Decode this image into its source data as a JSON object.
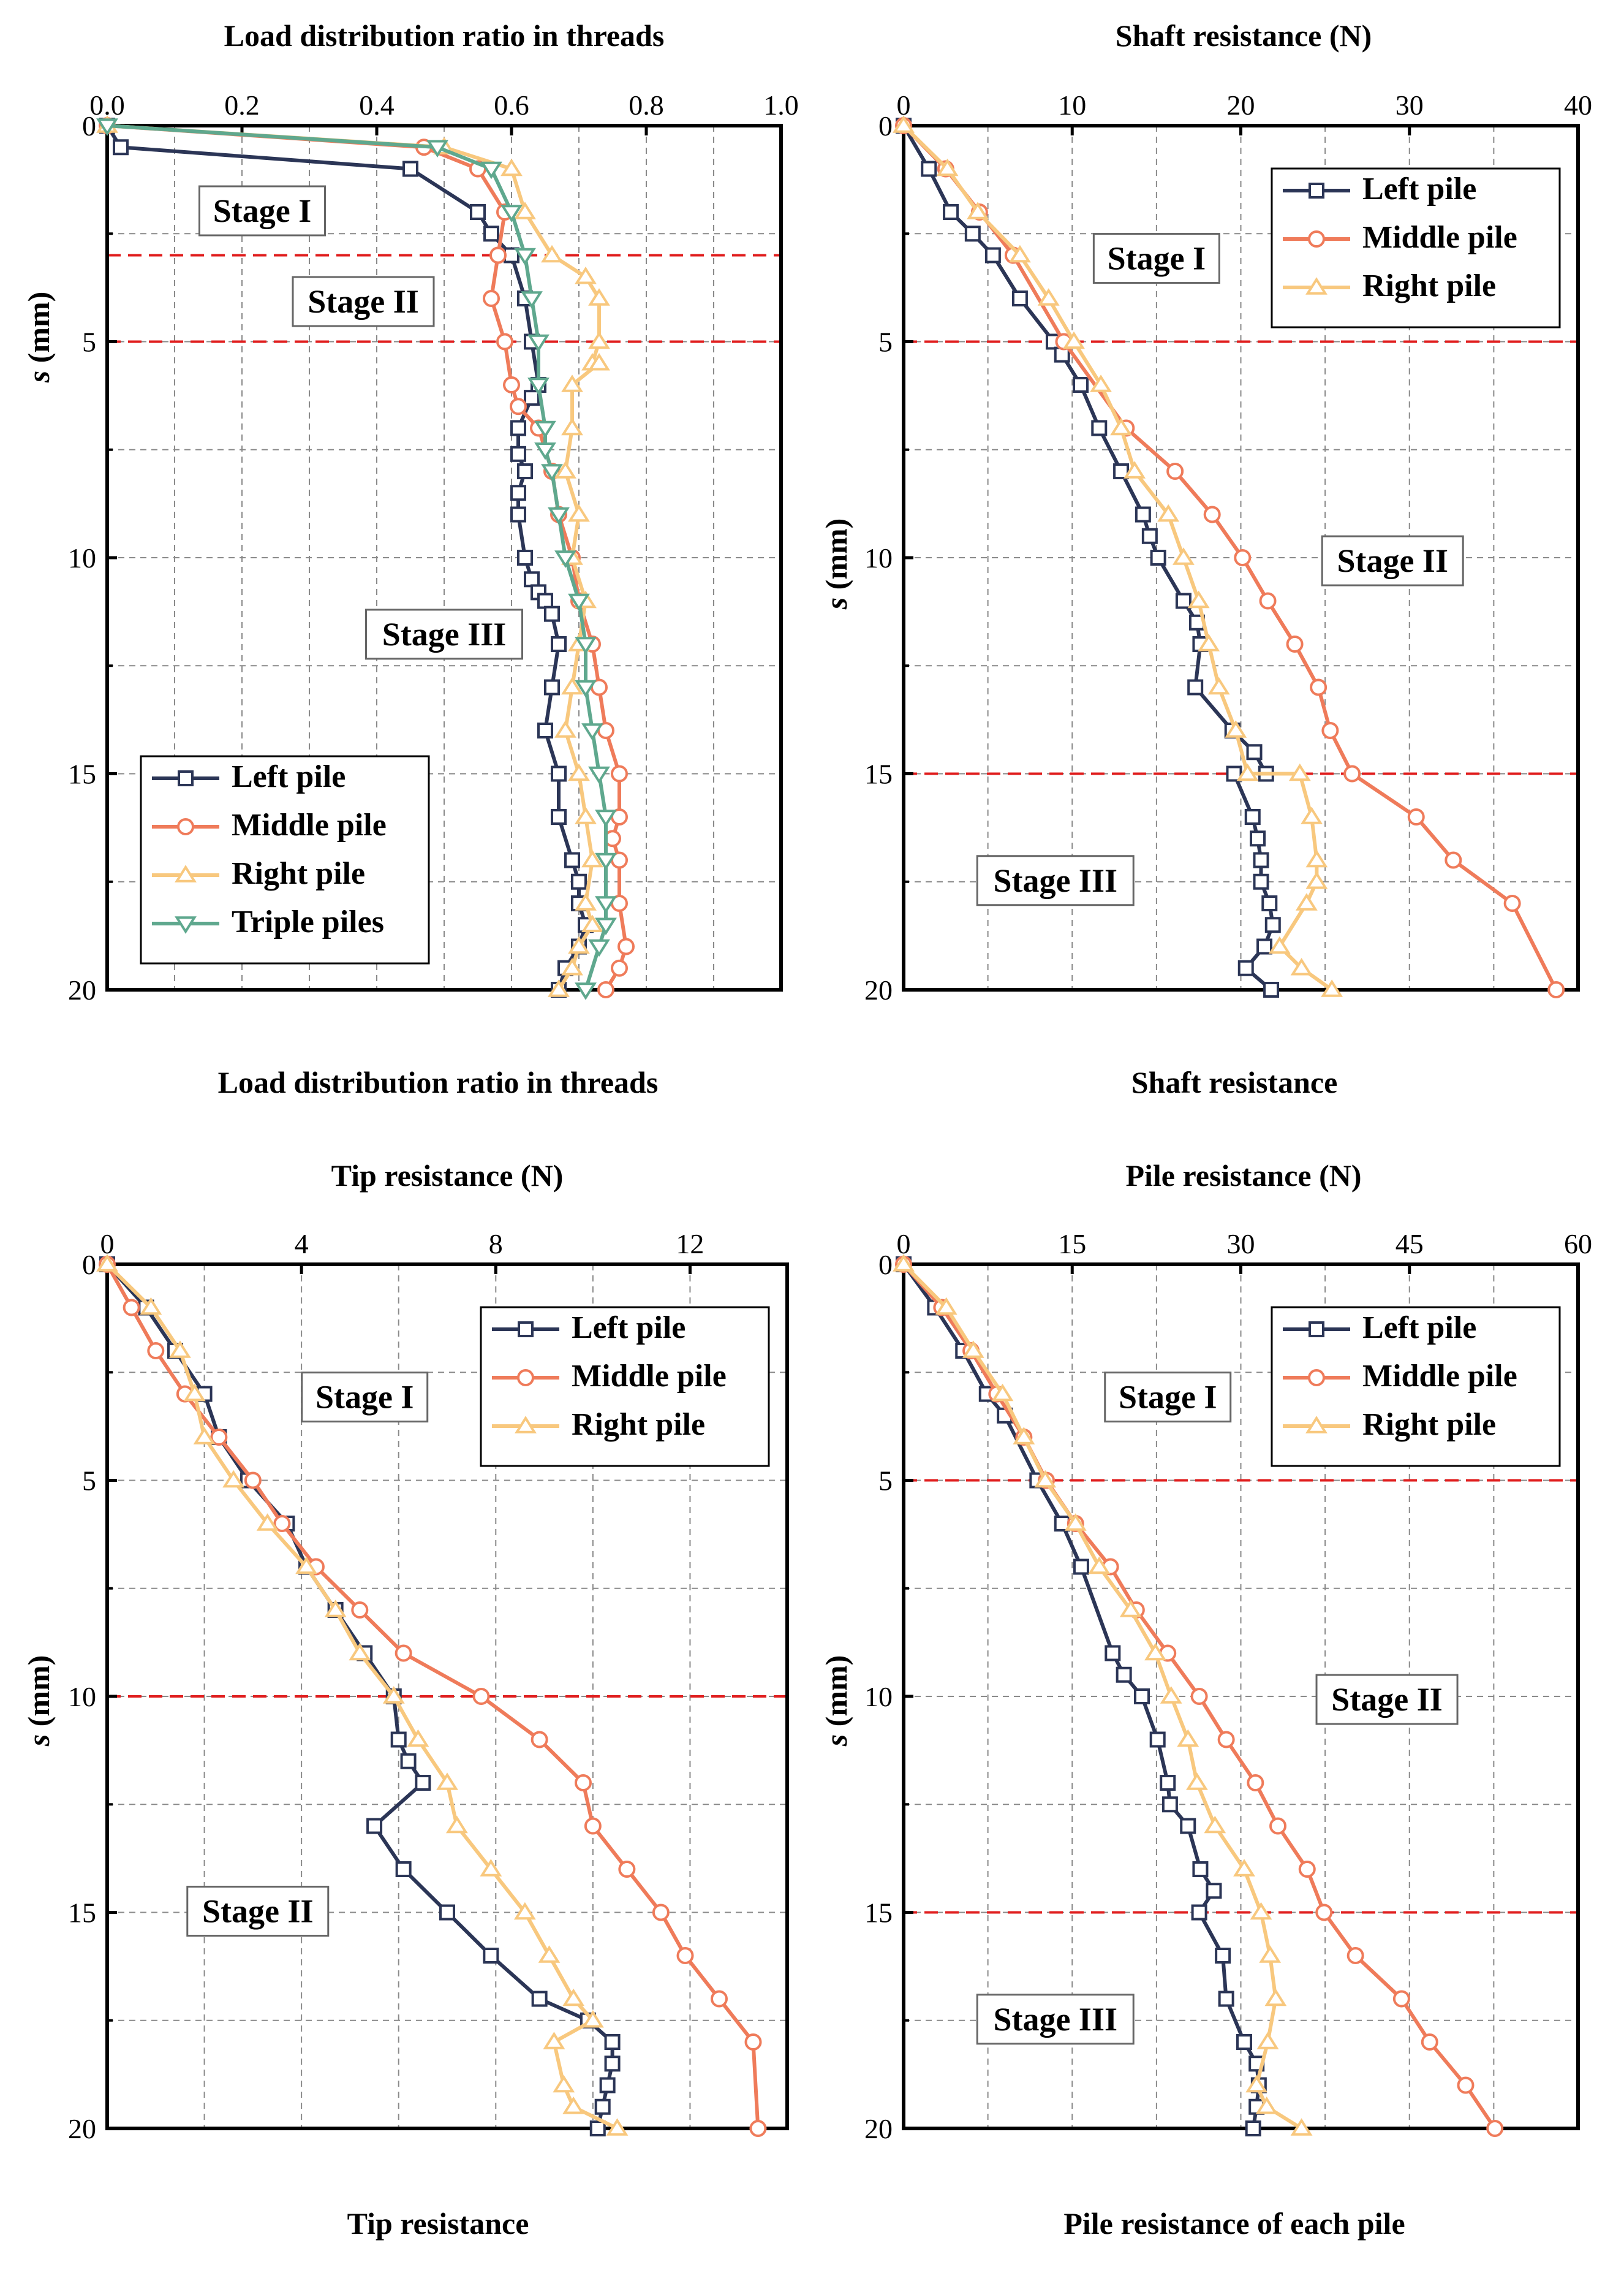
{
  "colors": {
    "left": "#2b3556",
    "middle": "#ef7b5a",
    "right": "#f8c87e",
    "triple": "#5fa88e",
    "stage_line": "#e01e1e",
    "grid": "#8a8a8a"
  },
  "chart_data": [
    {
      "id": "load-ratio",
      "type": "line",
      "title": "Load distribution ratio in threads",
      "caption": "Load distribution ratio in threads",
      "xlabel": "",
      "ylabel_italic": "s",
      "ylabel": " (mm)",
      "xlim": [
        0,
        1.0
      ],
      "ylim": [
        0,
        20
      ],
      "xticks": [
        "0.0",
        "0.2",
        "0.4",
        "0.6",
        "0.8",
        "1.0"
      ],
      "xtick_values": [
        0,
        0.2,
        0.4,
        0.6,
        0.8,
        1.0
      ],
      "yticks": [
        "0",
        "5",
        "10",
        "15",
        "20"
      ],
      "ytick_values": [
        0,
        5,
        10,
        15,
        20
      ],
      "stage_lines": [
        3,
        5
      ],
      "stages": [
        {
          "label": "Stage I",
          "x": 0.23,
          "y": 2.0
        },
        {
          "label": "Stage II",
          "x": 0.38,
          "y": 4.1
        },
        {
          "label": "Stage III",
          "x": 0.5,
          "y": 11.8
        }
      ],
      "legend": "bottom-left",
      "series": [
        {
          "name": "Left pile",
          "key": "left",
          "marker": "square",
          "x": [
            0.0,
            0.02,
            0.45,
            0.55,
            0.57,
            0.6,
            0.62,
            0.63,
            0.64,
            0.63,
            0.61,
            0.61,
            0.62,
            0.61,
            0.61,
            0.62,
            0.63,
            0.64,
            0.65,
            0.66,
            0.67,
            0.66,
            0.65,
            0.67,
            0.67,
            0.69,
            0.7,
            0.7,
            0.71,
            0.7,
            0.68,
            0.67
          ],
          "y": [
            0,
            0.5,
            1,
            2,
            2.5,
            3,
            4,
            5,
            6,
            6.3,
            7,
            7.6,
            8,
            8.5,
            9,
            10,
            10.5,
            10.8,
            11,
            11.3,
            12,
            13,
            14,
            15,
            16,
            17,
            17.5,
            18,
            18.5,
            19,
            19.5,
            20
          ]
        },
        {
          "name": "Middle pile",
          "key": "middle",
          "marker": "circle",
          "x": [
            0.0,
            0.47,
            0.55,
            0.59,
            0.58,
            0.57,
            0.59,
            0.6,
            0.61,
            0.64,
            0.66,
            0.67,
            0.69,
            0.7,
            0.72,
            0.73,
            0.74,
            0.76,
            0.76,
            0.75,
            0.76,
            0.76,
            0.77,
            0.76,
            0.74
          ],
          "y": [
            0,
            0.5,
            1,
            2,
            3,
            4,
            5,
            6,
            6.5,
            7,
            8,
            9,
            10,
            11,
            12,
            13,
            14,
            15,
            16,
            16.5,
            17,
            18,
            19,
            19.5,
            20
          ]
        },
        {
          "name": "Right pile",
          "key": "right",
          "marker": "triangle-up",
          "x": [
            0.0,
            0.5,
            0.6,
            0.62,
            0.66,
            0.71,
            0.73,
            0.73,
            0.72,
            0.73,
            0.69,
            0.69,
            0.68,
            0.7,
            0.69,
            0.71,
            0.7,
            0.69,
            0.68,
            0.7,
            0.71,
            0.72,
            0.71,
            0.72,
            0.7,
            0.69,
            0.67
          ],
          "y": [
            0,
            0.5,
            1,
            2,
            3,
            3.5,
            4,
            5,
            5.5,
            5.5,
            6,
            7,
            8,
            9,
            10,
            11,
            12,
            13,
            14,
            15,
            16,
            17,
            18,
            18.5,
            19,
            19.5,
            20
          ]
        },
        {
          "name": "Triple piles",
          "key": "triple",
          "marker": "triangle-down",
          "x": [
            0.0,
            0.49,
            0.57,
            0.6,
            0.62,
            0.63,
            0.64,
            0.64,
            0.65,
            0.65,
            0.66,
            0.67,
            0.68,
            0.7,
            0.71,
            0.71,
            0.72,
            0.73,
            0.74,
            0.74,
            0.74,
            0.74,
            0.73,
            0.71
          ],
          "y": [
            0,
            0.5,
            1,
            2,
            3,
            4,
            5,
            6,
            7,
            7.5,
            8,
            9,
            10,
            11,
            12,
            13,
            14,
            15,
            16,
            17,
            18,
            18.5,
            19,
            20
          ]
        }
      ]
    },
    {
      "id": "shaft-resistance",
      "type": "line",
      "title": "Shaft resistance (N)",
      "caption": "Shaft resistance",
      "xlabel": "",
      "ylabel_italic": "s",
      "ylabel": " (mm)",
      "xlim": [
        0,
        40
      ],
      "ylim": [
        0,
        20
      ],
      "xticks": [
        "0",
        "10",
        "20",
        "30",
        "40"
      ],
      "xtick_values": [
        0,
        10,
        20,
        30,
        40
      ],
      "yticks": [
        "0",
        "5",
        "10",
        "15",
        "20"
      ],
      "ytick_values": [
        0,
        5,
        10,
        15,
        20
      ],
      "stage_lines": [
        5,
        15
      ],
      "stages": [
        {
          "label": "Stage I",
          "x": 15,
          "y": 3.1
        },
        {
          "label": "Stage II",
          "x": 29,
          "y": 10.1
        },
        {
          "label": "Stage III",
          "x": 9,
          "y": 17.5
        }
      ],
      "legend": "top-right",
      "series": [
        {
          "name": "Left pile",
          "key": "left",
          "marker": "square",
          "x": [
            0,
            1.5,
            2.8,
            4.1,
            5.3,
            6.9,
            8.9,
            9.4,
            10.5,
            11.6,
            12.9,
            14.2,
            14.6,
            15.1,
            16.6,
            17.4,
            17.6,
            17.3,
            19.5,
            20.8,
            21.5,
            19.6,
            20.7,
            21.0,
            21.2,
            21.2,
            21.7,
            21.9,
            21.4,
            20.3,
            21.8
          ],
          "y": [
            0,
            1,
            2,
            2.5,
            3,
            4,
            5,
            5.3,
            6,
            7,
            8,
            9,
            9.5,
            10,
            11,
            11.5,
            12,
            13,
            14,
            14.5,
            15,
            15,
            16,
            16.5,
            17,
            17.5,
            18,
            18.5,
            19,
            19.5,
            20
          ]
        },
        {
          "name": "Middle pile",
          "key": "middle",
          "marker": "circle",
          "x": [
            0,
            2.5,
            4.5,
            6.5,
            9.5,
            13.2,
            16.1,
            18.3,
            20.1,
            21.6,
            23.2,
            24.6,
            25.3,
            26.6,
            30.4,
            32.6,
            36.1,
            38.7
          ],
          "y": [
            0,
            1,
            2,
            3,
            5,
            7,
            8,
            9,
            10,
            11,
            12,
            13,
            14,
            15,
            16,
            17,
            18,
            20
          ]
        },
        {
          "name": "Right pile",
          "key": "right",
          "marker": "triangle-up",
          "x": [
            0,
            2.6,
            4.4,
            6.9,
            8.6,
            10.1,
            11.7,
            12.9,
            13.7,
            15.7,
            16.6,
            17.5,
            18.1,
            18.7,
            19.7,
            20.4,
            23.5,
            24.2,
            24.5,
            24.5,
            23.9,
            22.3,
            23.6,
            25.4
          ],
          "y": [
            0,
            1,
            2,
            3,
            4,
            5,
            6,
            7,
            8,
            9,
            10,
            11,
            12,
            13,
            14,
            15,
            15,
            16,
            17,
            17.5,
            18,
            19,
            19.5,
            20
          ]
        }
      ]
    },
    {
      "id": "tip-resistance",
      "type": "line",
      "title": "Tip resistance (N)",
      "caption": "Tip resistance",
      "xlabel": "",
      "ylabel_italic": "s",
      "ylabel": " (mm)",
      "xlim": [
        0,
        14
      ],
      "ylim": [
        0,
        20
      ],
      "xticks": [
        "0",
        "4",
        "8",
        "12"
      ],
      "xtick_values": [
        0,
        4,
        8,
        12
      ],
      "yticks": [
        "0",
        "5",
        "10",
        "15",
        "20"
      ],
      "ytick_values": [
        0,
        5,
        10,
        15,
        20
      ],
      "stage_lines": [
        10
      ],
      "stages": [
        {
          "label": "Stage I",
          "x": 5.3,
          "y": 3.1
        },
        {
          "label": "Stage II",
          "x": 3.1,
          "y": 15.0
        }
      ],
      "legend": "top-right",
      "series": [
        {
          "name": "Left pile",
          "key": "left",
          "marker": "square",
          "x": [
            0,
            0.8,
            1.4,
            2.0,
            2.3,
            2.9,
            3.7,
            4.1,
            4.7,
            5.3,
            5.9,
            6.0,
            6.2,
            6.5,
            5.5,
            6.1,
            7.0,
            7.9,
            8.9,
            9.9,
            10.4,
            10.4,
            10.3,
            10.2,
            10.1
          ],
          "y": [
            0,
            1,
            2,
            3,
            4,
            5,
            6,
            7,
            8,
            9,
            10,
            11,
            11.5,
            12,
            13,
            14,
            15,
            16,
            17,
            17.5,
            18,
            18.5,
            19,
            19.5,
            20
          ]
        },
        {
          "name": "Middle pile",
          "key": "middle",
          "marker": "circle",
          "x": [
            0,
            0.5,
            1.0,
            1.6,
            2.3,
            3.0,
            3.6,
            4.3,
            5.2,
            6.1,
            7.7,
            8.9,
            9.8,
            10.0,
            10.7,
            11.4,
            11.9,
            12.6,
            13.3,
            13.4
          ],
          "y": [
            0,
            1,
            2,
            3,
            4,
            5,
            6,
            7,
            8,
            9,
            10,
            11,
            12,
            13,
            14,
            15,
            16,
            17,
            18,
            20
          ]
        },
        {
          "name": "Right pile",
          "key": "right",
          "marker": "triangle-up",
          "x": [
            0,
            0.9,
            1.5,
            1.8,
            2.0,
            2.6,
            3.3,
            4.1,
            4.7,
            5.2,
            5.9,
            6.4,
            7.0,
            7.2,
            7.9,
            8.6,
            9.1,
            9.6,
            10.0,
            9.2,
            9.4,
            9.6,
            10.5
          ],
          "y": [
            0,
            1,
            2,
            3,
            4,
            5,
            6,
            7,
            8,
            9,
            10,
            11,
            12,
            13,
            14,
            15,
            16,
            17,
            17.5,
            18,
            19,
            19.5,
            20
          ]
        }
      ]
    },
    {
      "id": "pile-resistance",
      "type": "line",
      "title": "Pile resistance (N)",
      "caption": "Pile resistance of each pile",
      "xlabel": "",
      "ylabel_italic": "s",
      "ylabel": " (mm)",
      "xlim": [
        0,
        60
      ],
      "ylim": [
        0,
        20
      ],
      "xticks": [
        "0",
        "15",
        "30",
        "45",
        "60"
      ],
      "xtick_values": [
        0,
        15,
        30,
        45,
        60
      ],
      "yticks": [
        "0",
        "5",
        "10",
        "15",
        "20"
      ],
      "ytick_values": [
        0,
        5,
        10,
        15,
        20
      ],
      "stage_lines": [
        5,
        15
      ],
      "stages": [
        {
          "label": "Stage I",
          "x": 23.5,
          "y": 3.1
        },
        {
          "label": "Stage II",
          "x": 43,
          "y": 10.1
        },
        {
          "label": "Stage III",
          "x": 13.5,
          "y": 17.5
        }
      ],
      "legend": "top-right",
      "series": [
        {
          "name": "Left pile",
          "key": "left",
          "marker": "square",
          "x": [
            0,
            2.8,
            5.3,
            7.4,
            9.0,
            11.9,
            14.1,
            15.8,
            18.6,
            19.6,
            21.2,
            22.6,
            23.5,
            23.7,
            25.3,
            26.4,
            27.6,
            26.3,
            28.4,
            28.7,
            30.3,
            31.4,
            31.6,
            31.4,
            31.1
          ],
          "y": [
            0,
            1,
            2,
            3,
            3.5,
            5,
            6,
            7,
            9,
            9.5,
            10,
            11,
            12,
            12.5,
            13,
            14,
            14.5,
            15,
            16,
            17,
            18,
            18.5,
            19,
            19.5,
            20
          ]
        },
        {
          "name": "Middle pile",
          "key": "middle",
          "marker": "circle",
          "x": [
            0,
            3.4,
            6.0,
            8.3,
            10.7,
            12.7,
            15.3,
            18.4,
            20.7,
            23.5,
            26.3,
            28.7,
            31.3,
            33.3,
            35.9,
            37.4,
            40.2,
            44.3,
            46.8,
            50.0,
            52.6
          ],
          "y": [
            0,
            1,
            2,
            3,
            4,
            5,
            6,
            7,
            8,
            9,
            10,
            11,
            12,
            13,
            14,
            15,
            16,
            17,
            18,
            19,
            20
          ]
        },
        {
          "name": "Right pile",
          "key": "right",
          "marker": "triangle-up",
          "x": [
            0,
            3.8,
            6.2,
            8.8,
            10.7,
            12.6,
            15.3,
            17.4,
            20.2,
            22.4,
            23.8,
            25.3,
            26.1,
            27.7,
            30.3,
            31.8,
            32.6,
            33.1,
            32.4,
            31.4,
            32.3,
            35.4
          ],
          "y": [
            0,
            1,
            2,
            3,
            4,
            5,
            6,
            7,
            8,
            9,
            10,
            11,
            12,
            13,
            14,
            15,
            16,
            17,
            18,
            19,
            19.5,
            20
          ]
        }
      ]
    }
  ]
}
